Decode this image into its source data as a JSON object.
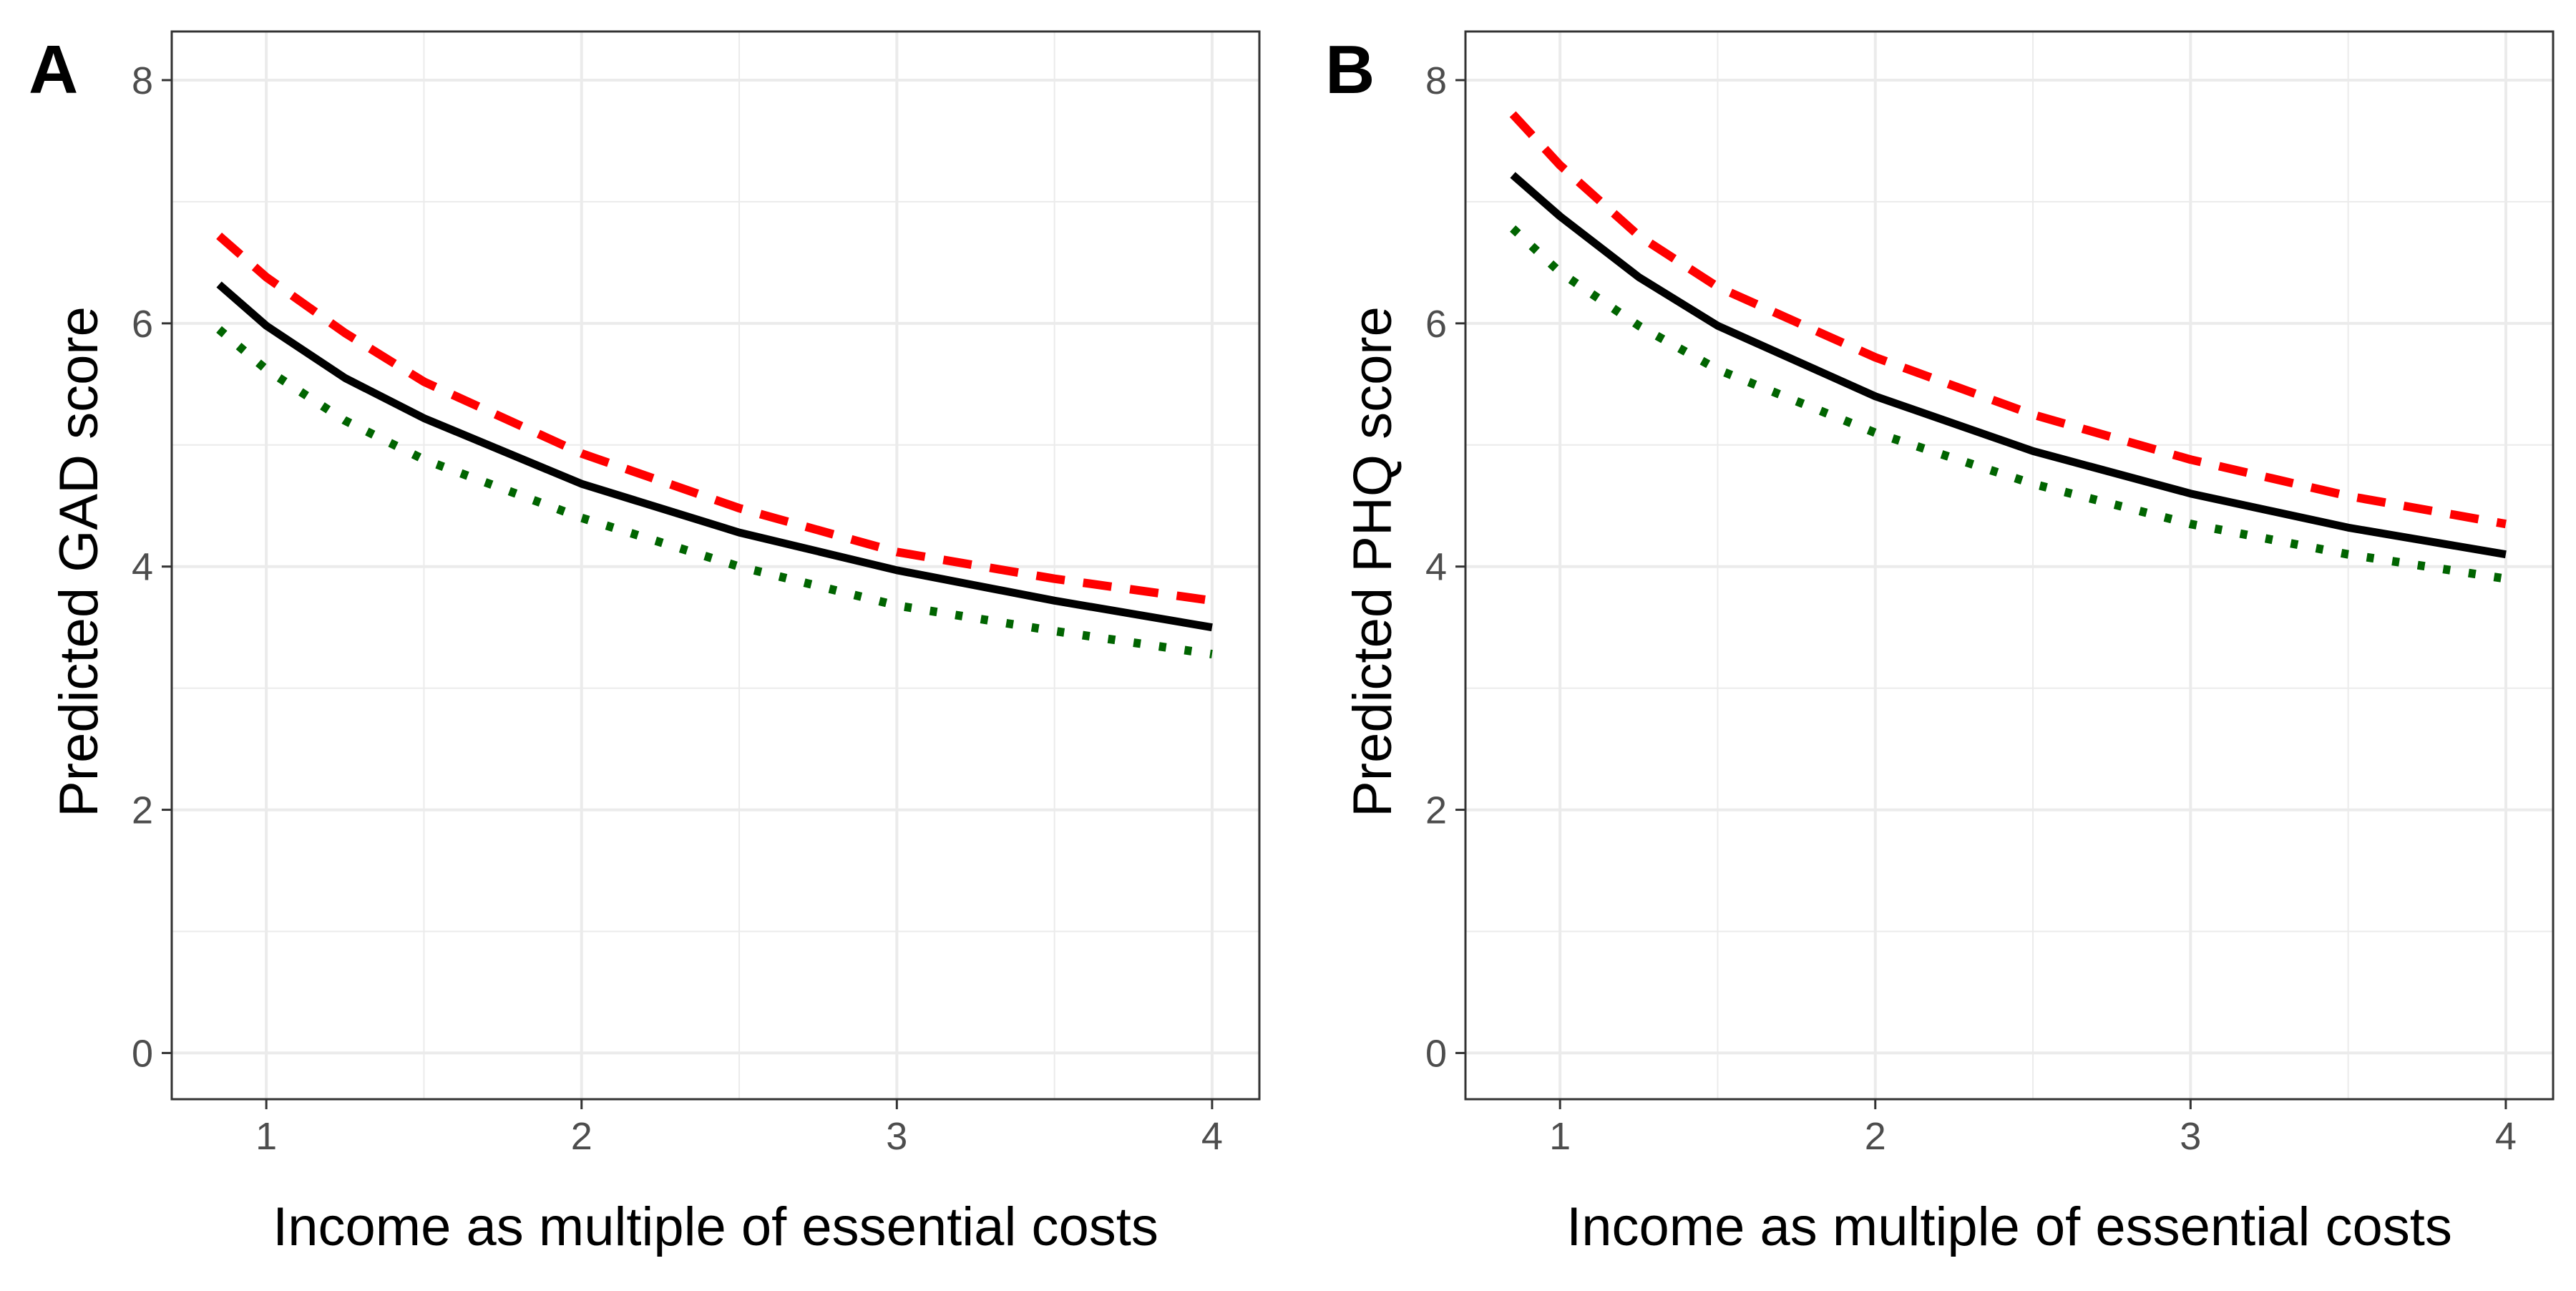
{
  "figure": {
    "panels": [
      {
        "tag": "A",
        "ylabel": "Predicted GAD score",
        "xlabel": "Income as multiple of essential costs"
      },
      {
        "tag": "B",
        "ylabel": "Predicted PHQ score",
        "xlabel": "Income as multiple of essential costs"
      }
    ]
  },
  "chart_data": [
    {
      "type": "line",
      "title": "",
      "panel_tag": "A",
      "xlabel": "Income as multiple of essential costs",
      "ylabel": "Predicted GAD score",
      "xlim": [
        0.7,
        4.15
      ],
      "ylim": [
        -0.38,
        8.4
      ],
      "x_ticks": [
        1,
        2,
        3,
        4
      ],
      "y_ticks": [
        0,
        2,
        4,
        6,
        8
      ],
      "grid": true,
      "legend": "none",
      "x": [
        0.85,
        1.0,
        1.25,
        1.5,
        2.0,
        2.5,
        3.0,
        3.5,
        4.0
      ],
      "series": [
        {
          "color": "#ff0000",
          "dash": "dashed",
          "values": [
            6.72,
            6.38,
            5.92,
            5.52,
            4.93,
            4.48,
            4.12,
            3.9,
            3.72
          ]
        },
        {
          "color": "#000000",
          "dash": "solid",
          "values": [
            6.32,
            5.98,
            5.55,
            5.22,
            4.68,
            4.28,
            3.97,
            3.72,
            3.5
          ]
        },
        {
          "color": "#006400",
          "dash": "dotted",
          "values": [
            5.95,
            5.62,
            5.2,
            4.88,
            4.4,
            4.0,
            3.68,
            3.47,
            3.28
          ]
        }
      ]
    },
    {
      "type": "line",
      "title": "",
      "panel_tag": "B",
      "xlabel": "Income as multiple of essential costs",
      "ylabel": "Predicted PHQ score",
      "xlim": [
        0.7,
        4.15
      ],
      "ylim": [
        -0.38,
        8.4
      ],
      "x_ticks": [
        1,
        2,
        3,
        4
      ],
      "y_ticks": [
        0,
        2,
        4,
        6,
        8
      ],
      "grid": true,
      "legend": "none",
      "x": [
        0.85,
        1.0,
        1.25,
        1.5,
        2.0,
        2.5,
        3.0,
        3.5,
        4.0
      ],
      "series": [
        {
          "color": "#ff0000",
          "dash": "dashed",
          "values": [
            7.72,
            7.3,
            6.72,
            6.3,
            5.72,
            5.25,
            4.88,
            4.58,
            4.35
          ]
        },
        {
          "color": "#000000",
          "dash": "solid",
          "values": [
            7.22,
            6.88,
            6.38,
            5.98,
            5.4,
            4.95,
            4.6,
            4.32,
            4.1
          ]
        },
        {
          "color": "#006400",
          "dash": "dotted",
          "values": [
            6.78,
            6.42,
            5.98,
            5.62,
            5.1,
            4.68,
            4.35,
            4.1,
            3.9
          ]
        }
      ]
    }
  ]
}
